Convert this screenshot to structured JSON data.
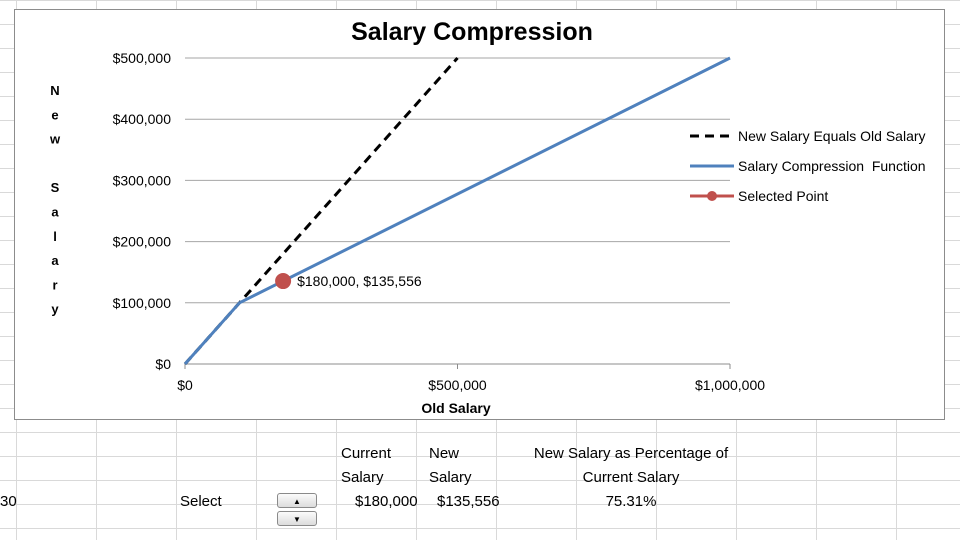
{
  "chart_data": {
    "type": "line",
    "title": "Salary Compression",
    "xlabel": "Old Salary",
    "ylabel": "New Salary",
    "xlim": [
      0,
      1000000
    ],
    "ylim": [
      0,
      500000
    ],
    "x_ticks": [
      0,
      500000,
      1000000
    ],
    "x_tick_labels": [
      "$0",
      "$500,000",
      "$1,000,000"
    ],
    "y_ticks": [
      0,
      100000,
      200000,
      300000,
      400000,
      500000
    ],
    "y_tick_labels": [
      "$0",
      "$100,000",
      "$200,000",
      "$300,000",
      "$400,000",
      "$500,000"
    ],
    "grid": "horizontal",
    "legend_position": "right",
    "series": [
      {
        "name": "New Salary Equals Old Salary",
        "style": "dashed",
        "color": "#000000",
        "points": [
          [
            0,
            0
          ],
          [
            500000,
            500000
          ]
        ]
      },
      {
        "name": "Salary Compression  Function",
        "style": "solid",
        "color": "#4f81bd",
        "points": [
          [
            0,
            0
          ],
          [
            100000,
            100000
          ],
          [
            1000000,
            500000
          ]
        ]
      },
      {
        "name": "Selected Point",
        "style": "marker",
        "color": "#c0504d",
        "points": [
          [
            180000,
            135556
          ]
        ]
      }
    ],
    "annotations": [
      {
        "text": "$180,000, $135,556",
        "x": 180000,
        "y": 135556
      }
    ]
  },
  "sheet": {
    "row_number_partial": "30",
    "select_label": "Select",
    "headers": {
      "current_line1": "Current",
      "current_line2": "Salary",
      "new_line1": "New",
      "new_line2": "Salary",
      "pct_line1": "New Salary as Percentage of",
      "pct_line2": "Current Salary"
    },
    "values": {
      "current": "$180,000",
      "new": "$135,556",
      "pct": "75.31%"
    },
    "spinner": {
      "up_icon": "▲",
      "down_icon": "▼"
    }
  }
}
